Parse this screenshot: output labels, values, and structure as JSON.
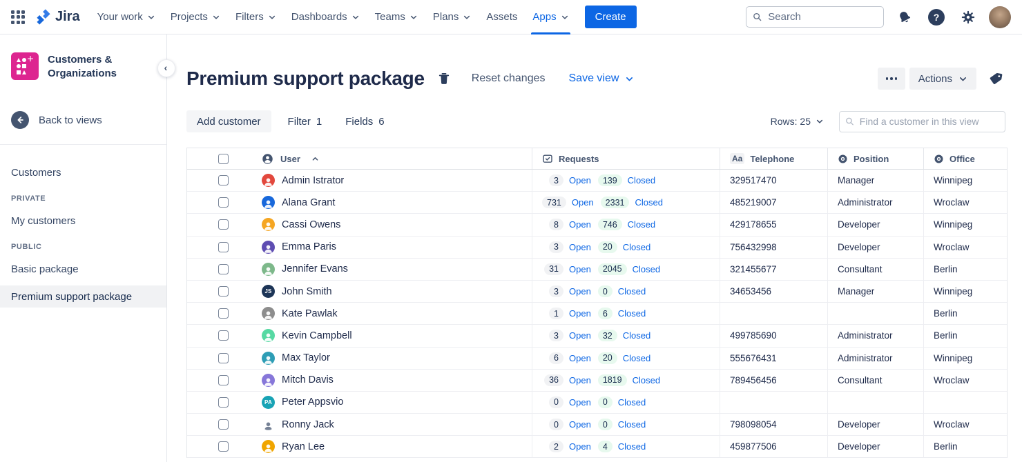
{
  "topnav": {
    "logo_text": "Jira",
    "items": [
      {
        "label": "Your work",
        "chevron": true
      },
      {
        "label": "Projects",
        "chevron": true
      },
      {
        "label": "Filters",
        "chevron": true
      },
      {
        "label": "Dashboards",
        "chevron": true
      },
      {
        "label": "Teams",
        "chevron": true
      },
      {
        "label": "Plans",
        "chevron": true
      },
      {
        "label": "Assets",
        "chevron": false
      },
      {
        "label": "Apps",
        "chevron": true,
        "active": true
      }
    ],
    "create_label": "Create",
    "search_placeholder": "Search"
  },
  "sidebar": {
    "app_title": "Customers & Organizations",
    "back_label": "Back to views",
    "nav": [
      {
        "type": "item",
        "label": "Customers"
      },
      {
        "type": "heading",
        "label": "PRIVATE"
      },
      {
        "type": "item",
        "label": "My customers"
      },
      {
        "type": "heading",
        "label": "PUBLIC"
      },
      {
        "type": "item",
        "label": "Basic package"
      },
      {
        "type": "item",
        "label": "Premium support package",
        "selected": true
      }
    ]
  },
  "header": {
    "title": "Premium support package",
    "reset_label": "Reset changes",
    "save_view_label": "Save view",
    "actions_label": "Actions"
  },
  "toolbar": {
    "add_customer_label": "Add customer",
    "filter_label": "Filter",
    "filter_count": "1",
    "fields_label": "Fields",
    "fields_count": "6",
    "rows_label": "Rows: 25",
    "find_placeholder": "Find a customer in this view"
  },
  "table": {
    "columns": {
      "user": "User",
      "requests": "Requests",
      "telephone": "Telephone",
      "position": "Position",
      "office": "Office"
    },
    "open_label": "Open",
    "closed_label": "Closed",
    "rows": [
      {
        "name": "Admin Istrator",
        "avatar": {
          "type": "face",
          "color": "#E2483D"
        },
        "open": "3",
        "closed": "139",
        "telephone": "329517470",
        "position": "Manager",
        "office": "Winnipeg"
      },
      {
        "name": "Alana Grant",
        "avatar": {
          "type": "face",
          "color": "#1868DB"
        },
        "open": "731",
        "closed": "2331",
        "telephone": "485219007",
        "position": "Administrator",
        "office": "Wroclaw"
      },
      {
        "name": "Cassi Owens",
        "avatar": {
          "type": "face",
          "color": "#F5A623"
        },
        "open": "8",
        "closed": "746",
        "telephone": "429178655",
        "position": "Developer",
        "office": "Winnipeg"
      },
      {
        "name": "Emma Paris",
        "avatar": {
          "type": "face",
          "color": "#5E4DB2"
        },
        "open": "3",
        "closed": "20",
        "telephone": "756432998",
        "position": "Developer",
        "office": "Wroclaw"
      },
      {
        "name": "Jennifer Evans",
        "avatar": {
          "type": "face",
          "color": "#7DB88A"
        },
        "open": "31",
        "closed": "2045",
        "telephone": "321455677",
        "position": "Consultant",
        "office": "Berlin"
      },
      {
        "name": "John Smith",
        "avatar": {
          "type": "initials",
          "color": "#1D3557",
          "initials": "JS"
        },
        "open": "3",
        "closed": "0",
        "telephone": "34653456",
        "position": "Manager",
        "office": "Winnipeg"
      },
      {
        "name": "Kate Pawlak",
        "avatar": {
          "type": "face",
          "color": "#8D8D8D"
        },
        "open": "1",
        "closed": "6",
        "telephone": "",
        "position": "",
        "office": "Berlin"
      },
      {
        "name": "Kevin Campbell",
        "avatar": {
          "type": "face",
          "color": "#57D9A3"
        },
        "open": "3",
        "closed": "32",
        "telephone": "499785690",
        "position": "Administrator",
        "office": "Berlin"
      },
      {
        "name": "Max Taylor",
        "avatar": {
          "type": "face",
          "color": "#2E9DB5"
        },
        "open": "6",
        "closed": "20",
        "telephone": "555676431",
        "position": "Administrator",
        "office": "Winnipeg"
      },
      {
        "name": "Mitch Davis",
        "avatar": {
          "type": "face",
          "color": "#8777D9"
        },
        "open": "36",
        "closed": "1819",
        "telephone": "789456456",
        "position": "Consultant",
        "office": "Wroclaw"
      },
      {
        "name": "Peter Appsvio",
        "avatar": {
          "type": "initials",
          "color": "#18A3B5",
          "initials": "PA"
        },
        "open": "0",
        "closed": "0",
        "telephone": "",
        "position": "",
        "office": ""
      },
      {
        "name": "Ronny Jack",
        "avatar": {
          "type": "person",
          "color": "#FFFFFF"
        },
        "open": "0",
        "closed": "0",
        "telephone": "798098054",
        "position": "Developer",
        "office": "Wroclaw"
      },
      {
        "name": "Ryan Lee",
        "avatar": {
          "type": "face",
          "color": "#F0A500"
        },
        "open": "2",
        "closed": "4",
        "telephone": "459877506",
        "position": "Developer",
        "office": "Berlin"
      }
    ]
  },
  "colors": {
    "accent_blue": "#0C66E4",
    "app_pink": "#DD2590",
    "navy_icon": "#2C3E5D",
    "green_pill_bg": "#E7F9EE",
    "gray_pill_bg": "#F1F2F4"
  }
}
